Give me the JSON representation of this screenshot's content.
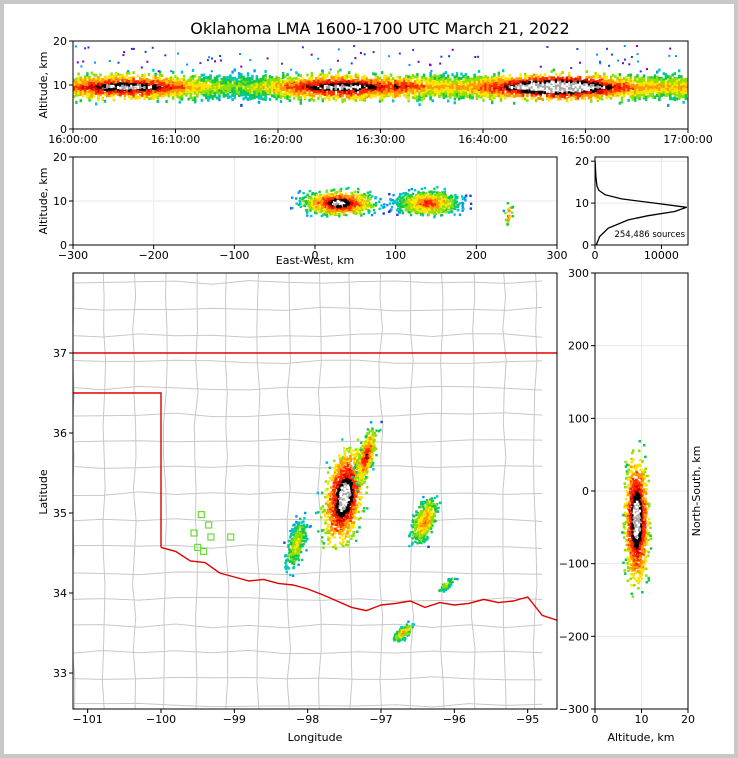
{
  "figure": {
    "title": "Oklahoma LMA 1600-1700 UTC March 21, 2022",
    "source_count_label": "254,486 sources"
  },
  "chart_data": [
    {
      "id": "time-height",
      "type": "heatmap",
      "xlabel": "",
      "ylabel": "Altitude, km",
      "x_ticks": [
        "16:00:00",
        "16:10:00",
        "16:20:00",
        "16:30:00",
        "16:40:00",
        "16:50:00",
        "17:00:00"
      ],
      "y_ticks": [
        0,
        10,
        20
      ],
      "ylim": [
        0,
        20
      ],
      "band_core_altitude_km": 9.5,
      "band_range_km": [
        3,
        15
      ]
    },
    {
      "id": "east-west-altitude",
      "type": "heatmap",
      "xlabel": "East-West, km",
      "ylabel": "Altitude, km",
      "x_ticks": [
        -300,
        -200,
        -100,
        0,
        100,
        200,
        300
      ],
      "xlim": [
        -300,
        300
      ],
      "y_ticks": [
        0,
        10,
        20
      ],
      "ylim": [
        0,
        20
      ],
      "clusters_km": [
        {
          "x": 30,
          "z": 9.5,
          "w": 80
        },
        {
          "x": 140,
          "z": 9.5,
          "w": 70
        },
        {
          "x": 240,
          "z": 7,
          "w": 10
        }
      ]
    },
    {
      "id": "altitude-histogram",
      "type": "line",
      "x_ticks": [
        0,
        10000
      ],
      "xlim": [
        0,
        14000
      ],
      "y_ticks": [
        0,
        10,
        20
      ],
      "ylim": [
        0,
        21
      ],
      "series": [
        {
          "altitude": [
            0,
            2,
            4,
            6,
            7,
            8,
            9,
            10,
            11,
            12,
            13,
            14,
            16,
            18,
            20
          ],
          "count": [
            200,
            700,
            2000,
            5000,
            8000,
            12000,
            13800,
            9000,
            4000,
            1500,
            600,
            300,
            150,
            80,
            20
          ]
        }
      ]
    },
    {
      "id": "plan-view",
      "type": "heatmap",
      "xlabel": "Longitude",
      "ylabel": "Latitude",
      "x_ticks": [
        -101,
        -100,
        -99,
        -98,
        -97,
        -96,
        -95
      ],
      "xlim": [
        -101.2,
        -94.6
      ],
      "y_ticks": [
        33,
        34,
        35,
        36,
        37
      ],
      "ylim": [
        32.55,
        38.0
      ],
      "stations": [
        {
          "lon": -99.45,
          "lat": 34.98
        },
        {
          "lon": -99.35,
          "lat": 34.85
        },
        {
          "lon": -99.55,
          "lat": 34.75
        },
        {
          "lon": -99.32,
          "lat": 34.7
        },
        {
          "lon": -99.5,
          "lat": 34.57
        },
        {
          "lon": -99.42,
          "lat": 34.52
        },
        {
          "lon": -99.05,
          "lat": 34.7
        }
      ]
    },
    {
      "id": "north-south-altitude",
      "type": "heatmap",
      "xlabel": "Altitude, km",
      "ylabel": "North-South, km",
      "x_ticks": [
        0,
        10,
        20
      ],
      "xlim": [
        0,
        20
      ],
      "y_ticks": [
        -300,
        -200,
        -100,
        0,
        100,
        200,
        300
      ],
      "ylim": [
        -300,
        300
      ]
    }
  ]
}
